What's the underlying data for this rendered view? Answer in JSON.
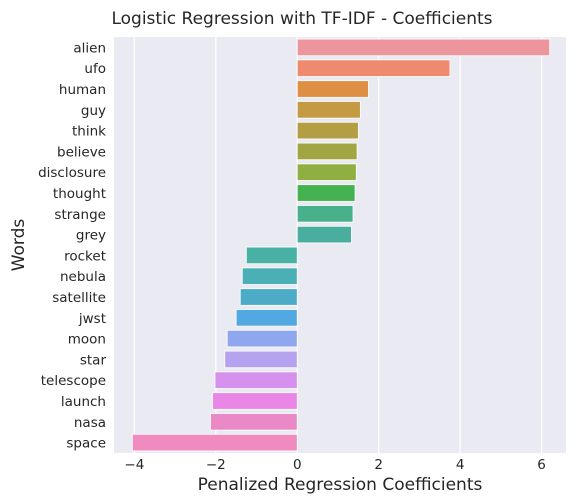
{
  "chart_data": {
    "type": "bar",
    "orientation": "horizontal",
    "title": "Logistic Regression with TF-IDF - Coefficients",
    "xlabel": "Penalized Regression Coefficients",
    "ylabel": "Words",
    "xlim": [
      -4.5,
      6.6
    ],
    "xticks": [
      -4,
      -2,
      0,
      2,
      4,
      6
    ],
    "xtick_labels": [
      "−4",
      "−2",
      "0",
      "2",
      "4",
      "6"
    ],
    "grid": true,
    "background": "#eaeaf2",
    "categories": [
      "alien",
      "ufo",
      "human",
      "guy",
      "think",
      "believe",
      "disclosure",
      "thought",
      "strange",
      "grey",
      "rocket",
      "nebula",
      "satellite",
      "jwst",
      "moon",
      "star",
      "telescope",
      "launch",
      "nasa",
      "space"
    ],
    "values": [
      6.2,
      3.75,
      1.75,
      1.55,
      1.5,
      1.47,
      1.45,
      1.42,
      1.37,
      1.33,
      -1.25,
      -1.35,
      -1.4,
      -1.5,
      -1.72,
      -1.78,
      -2.02,
      -2.08,
      -2.13,
      -4.05
    ],
    "colors": [
      "#ec959d",
      "#ee8a6e",
      "#df8f44",
      "#c49a43",
      "#b39e43",
      "#a2a642",
      "#8faf43",
      "#44b24f",
      "#48b08a",
      "#49ae9e",
      "#49b0a4",
      "#4bb0b6",
      "#4cacc7",
      "#52a8e0",
      "#8fa7ee",
      "#b6a3f0",
      "#d691ef",
      "#ea86e6",
      "#eb89c6",
      "#ef8bbf"
    ]
  }
}
